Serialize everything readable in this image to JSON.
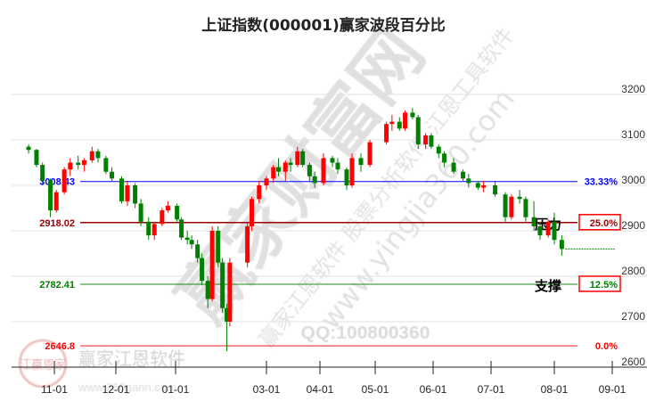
{
  "chart_data": {
    "type": "candlestick",
    "title": "上证指数(000001)赢家波段百分比",
    "ylim": [
      2600,
      3200
    ],
    "yticks": [
      2600,
      2700,
      2800,
      2900,
      3000,
      3100,
      3200
    ],
    "xticks": [
      "11-01",
      "12-01",
      "01-01",
      "03-01",
      "04-01",
      "05-01",
      "06-01",
      "07-01",
      "08-01",
      "09-01"
    ],
    "grid": true,
    "colors": {
      "up": "#ff0000",
      "down": "#008000"
    },
    "levels": [
      {
        "value": 3008.43,
        "label": "3008.43",
        "pct": "33.33%",
        "color": "#0000ff",
        "boxed": false
      },
      {
        "value": 2918.02,
        "label": "2918.02",
        "pct": "25.0%",
        "color": "#990000",
        "boxed": true,
        "tag": "压力"
      },
      {
        "value": 2782.41,
        "label": "2782.41",
        "pct": "12.5%",
        "color": "#008000",
        "boxed": true,
        "tag": "支撑"
      },
      {
        "value": 2646.8,
        "label": "2646.8",
        "pct": "0.0%",
        "color": "#ff0000",
        "boxed": false
      }
    ],
    "last_close": 2860,
    "candles_columns": [
      "date",
      "open",
      "high",
      "low",
      "close"
    ],
    "candles": [
      [
        "10-19",
        3085,
        3090,
        3070,
        3078
      ],
      [
        "10-23",
        3078,
        3080,
        3040,
        3045
      ],
      [
        "10-26",
        3045,
        3050,
        3000,
        3010
      ],
      [
        "10-30",
        3010,
        3015,
        2930,
        2945
      ],
      [
        "11-02",
        2945,
        2990,
        2940,
        2985
      ],
      [
        "11-06",
        2985,
        3040,
        2980,
        3035
      ],
      [
        "11-09",
        3035,
        3060,
        3020,
        3050
      ],
      [
        "11-13",
        3050,
        3065,
        3035,
        3045
      ],
      [
        "11-16",
        3045,
        3060,
        3030,
        3055
      ],
      [
        "11-20",
        3055,
        3085,
        3050,
        3075
      ],
      [
        "11-23",
        3075,
        3080,
        3050,
        3060
      ],
      [
        "11-27",
        3060,
        3065,
        3025,
        3030
      ],
      [
        "11-30",
        3030,
        3040,
        3010,
        3015
      ],
      [
        "12-04",
        3015,
        3020,
        2960,
        2965
      ],
      [
        "12-07",
        2965,
        3010,
        2955,
        3000
      ],
      [
        "12-11",
        3000,
        3005,
        2950,
        2960
      ],
      [
        "12-14",
        2960,
        2970,
        2910,
        2920
      ],
      [
        "12-18",
        2920,
        2930,
        2880,
        2890
      ],
      [
        "12-21",
        2890,
        2920,
        2880,
        2915
      ],
      [
        "12-25",
        2915,
        2950,
        2910,
        2945
      ],
      [
        "12-28",
        2945,
        2965,
        2940,
        2955
      ],
      [
        "01-02",
        2955,
        2960,
        2920,
        2925
      ],
      [
        "01-05",
        2925,
        2930,
        2880,
        2885
      ],
      [
        "01-09",
        2885,
        2900,
        2870,
        2880
      ],
      [
        "01-12",
        2880,
        2890,
        2860,
        2870
      ],
      [
        "01-16",
        2870,
        2880,
        2830,
        2840
      ],
      [
        "01-19",
        2840,
        2850,
        2780,
        2790
      ],
      [
        "01-23",
        2790,
        2800,
        2730,
        2750
      ],
      [
        "01-26",
        2750,
        2910,
        2745,
        2900
      ],
      [
        "01-30",
        2900,
        2910,
        2820,
        2830
      ],
      [
        "02-02",
        2830,
        2840,
        2720,
        2730
      ],
      [
        "02-05",
        2730,
        2740,
        2635,
        2700
      ],
      [
        "02-07",
        2700,
        2840,
        2690,
        2830
      ],
      [
        "02-19",
        2830,
        2920,
        2820,
        2910
      ],
      [
        "02-22",
        2910,
        2975,
        2900,
        2970
      ],
      [
        "02-27",
        2970,
        3010,
        2960,
        3000
      ],
      [
        "03-01",
        3000,
        3020,
        2990,
        3015
      ],
      [
        "03-05",
        3015,
        3045,
        3005,
        3040
      ],
      [
        "03-08",
        3040,
        3060,
        3020,
        3030
      ],
      [
        "03-12",
        3030,
        3055,
        3010,
        3050
      ],
      [
        "03-15",
        3050,
        3060,
        3030,
        3045
      ],
      [
        "03-19",
        3045,
        3085,
        3040,
        3075
      ],
      [
        "03-22",
        3075,
        3080,
        3040,
        3045
      ],
      [
        "03-26",
        3045,
        3050,
        3010,
        3020
      ],
      [
        "03-29",
        3020,
        3030,
        2995,
        3005
      ],
      [
        "04-03",
        3005,
        3070,
        3000,
        3060
      ],
      [
        "04-08",
        3060,
        3065,
        3040,
        3050
      ],
      [
        "04-11",
        3050,
        3060,
        3025,
        3035
      ],
      [
        "04-16",
        3035,
        3040,
        2990,
        3000
      ],
      [
        "04-19",
        3000,
        3070,
        2995,
        3060
      ],
      [
        "04-24",
        3060,
        3070,
        3030,
        3045
      ],
      [
        "04-29",
        3045,
        3100,
        3040,
        3095
      ],
      [
        "05-07",
        3095,
        3140,
        3090,
        3135
      ],
      [
        "05-10",
        3135,
        3155,
        3120,
        3140
      ],
      [
        "05-14",
        3140,
        3150,
        3120,
        3125
      ],
      [
        "05-17",
        3125,
        3165,
        3120,
        3160
      ],
      [
        "05-21",
        3160,
        3170,
        3145,
        3150
      ],
      [
        "05-24",
        3150,
        3155,
        3080,
        3090
      ],
      [
        "05-28",
        3090,
        3115,
        3080,
        3110
      ],
      [
        "05-31",
        3110,
        3115,
        3080,
        3085
      ],
      [
        "06-04",
        3085,
        3090,
        3060,
        3070
      ],
      [
        "06-07",
        3070,
        3075,
        3040,
        3050
      ],
      [
        "06-12",
        3050,
        3060,
        3025,
        3030
      ],
      [
        "06-17",
        3030,
        3035,
        3010,
        3015
      ],
      [
        "06-20",
        3015,
        3025,
        2995,
        3005
      ],
      [
        "06-25",
        3005,
        3010,
        2990,
        2995
      ],
      [
        "06-28",
        2995,
        3010,
        2985,
        3000
      ],
      [
        "07-03",
        3000,
        3010,
        2975,
        2980
      ],
      [
        "07-08",
        2980,
        2985,
        2920,
        2930
      ],
      [
        "07-11",
        2930,
        2980,
        2925,
        2975
      ],
      [
        "07-15",
        2975,
        2990,
        2960,
        2970
      ],
      [
        "07-18",
        2970,
        2975,
        2920,
        2930
      ],
      [
        "07-22",
        2930,
        2965,
        2900,
        2910
      ],
      [
        "07-25",
        2910,
        2920,
        2880,
        2890
      ],
      [
        "07-29",
        2890,
        2925,
        2885,
        2920
      ],
      [
        "08-01",
        2920,
        2940,
        2870,
        2880
      ],
      [
        "08-05",
        2880,
        2890,
        2845,
        2860
      ]
    ]
  },
  "watermark": {
    "big": "赢家财富网",
    "line1": "赢家江恩软件 股票分析软件 江恩工具软件",
    "url": "www.yingjia360.com",
    "qq": "QQ:100800360",
    "logo_text": "赢家江恩软件",
    "logo_url": "www.360gann.com",
    "seal": "江赢恩家"
  }
}
